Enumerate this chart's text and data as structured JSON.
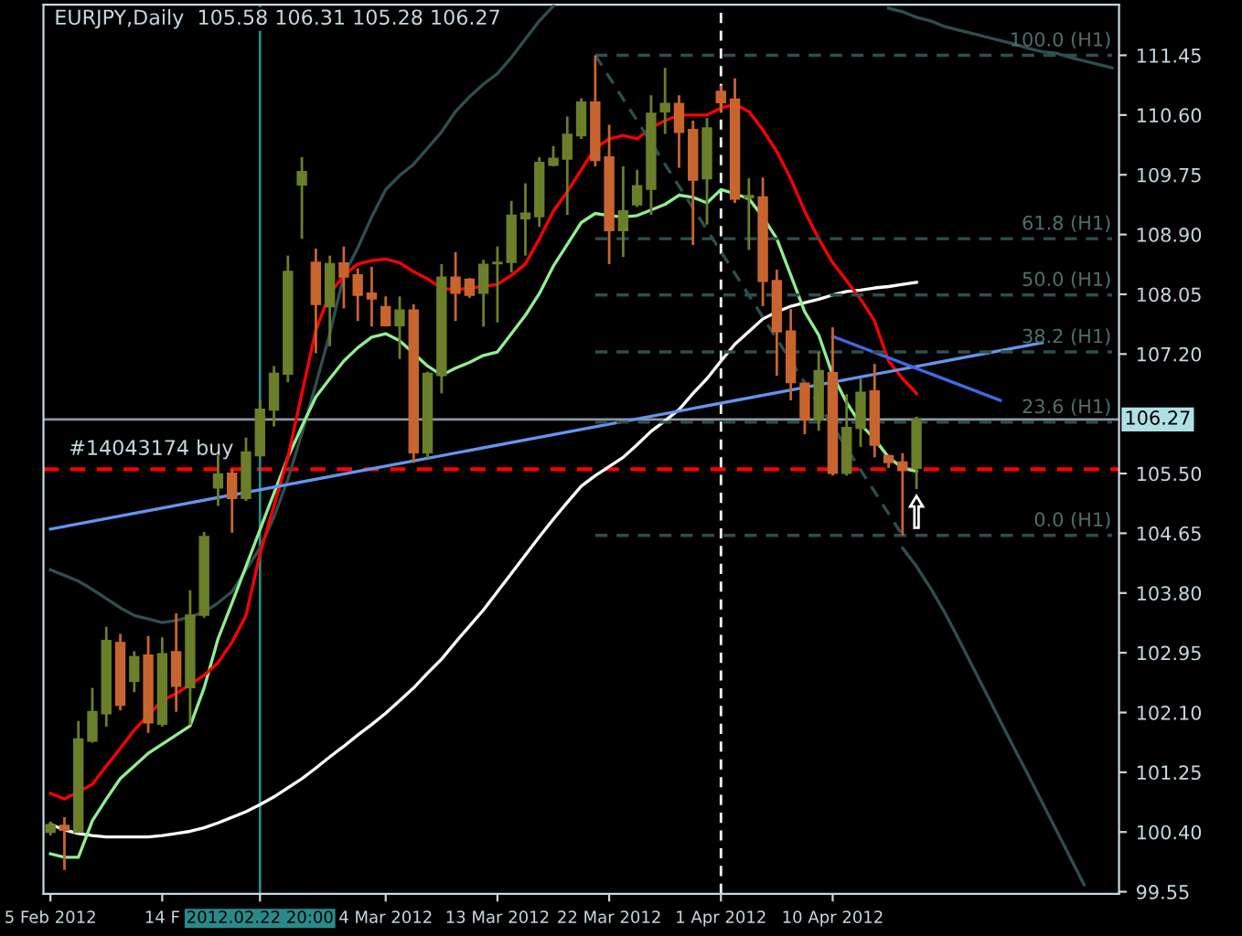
{
  "chart_data": {
    "type": "candlestick",
    "title": "EURJPY,Daily  105.58 106.31 105.28 106.27",
    "categories": [
      "5 Feb 2012",
      null,
      null,
      null,
      null,
      null,
      null,
      null,
      "14 F",
      null,
      null,
      null,
      null,
      null,
      null,
      "2012.02.22 20:00",
      null,
      null,
      null,
      null,
      null,
      null,
      null,
      null,
      "4 Mar 2012",
      null,
      null,
      null,
      null,
      null,
      null,
      null,
      "13 Mar 2012",
      null,
      null,
      null,
      null,
      null,
      null,
      null,
      "22 Mar 2012",
      null,
      null,
      null,
      null,
      null,
      null,
      null,
      "1 Apr 2012",
      null,
      null,
      null,
      null,
      null,
      null,
      null,
      "10 Apr 2012",
      null,
      null,
      null,
      null,
      null,
      null,
      null,
      null,
      null,
      null,
      null,
      null,
      null,
      null,
      null,
      null,
      null,
      null,
      null,
      null
    ],
    "ohlc": [
      [
        100.4,
        100.55,
        100.35,
        100.5
      ],
      [
        100.49,
        100.61,
        99.86,
        100.43
      ],
      [
        100.4,
        101.98,
        100.4,
        101.72
      ],
      [
        101.7,
        102.45,
        101.67,
        102.11
      ],
      [
        102.09,
        103.32,
        101.9,
        103.12
      ],
      [
        103.09,
        103.22,
        102.13,
        102.21
      ],
      [
        102.55,
        102.97,
        102.39,
        102.89
      ],
      [
        102.91,
        103.19,
        101.81,
        101.96
      ],
      [
        101.94,
        103.17,
        101.9,
        102.93
      ],
      [
        102.96,
        103.51,
        102.11,
        102.48
      ],
      [
        102.46,
        103.84,
        101.92,
        103.48
      ],
      [
        103.49,
        104.67,
        103.45,
        104.6
      ],
      [
        105.3,
        105.76,
        105.04,
        105.49
      ],
      [
        105.5,
        105.56,
        104.66,
        105.15
      ],
      [
        105.15,
        106.01,
        105.11,
        105.8
      ],
      [
        105.76,
        106.55,
        105.73,
        106.41
      ],
      [
        106.41,
        107.03,
        106.17,
        106.92
      ],
      [
        106.92,
        108.6,
        106.8,
        108.37
      ],
      [
        109.61,
        110.0,
        108.84,
        109.79
      ],
      [
        108.5,
        108.7,
        107.21,
        107.91
      ],
      [
        107.88,
        108.6,
        107.31,
        108.48
      ],
      [
        108.49,
        108.73,
        107.85,
        108.3
      ],
      [
        108.32,
        108.42,
        107.67,
        108.04
      ],
      [
        108.06,
        108.44,
        107.59,
        107.99
      ],
      [
        107.87,
        108.02,
        107.59,
        107.61
      ],
      [
        107.61,
        108.02,
        107.13,
        107.82
      ],
      [
        107.82,
        107.91,
        105.65,
        105.8
      ],
      [
        105.8,
        106.95,
        105.72,
        106.92
      ],
      [
        106.9,
        108.48,
        106.64,
        108.29
      ],
      [
        108.29,
        108.65,
        107.67,
        108.07
      ],
      [
        108.26,
        108.28,
        108.0,
        108.04
      ],
      [
        108.07,
        108.54,
        107.59,
        108.47
      ],
      [
        108.49,
        108.73,
        107.65,
        108.5
      ],
      [
        108.51,
        109.38,
        108.36,
        109.17
      ],
      [
        109.13,
        109.63,
        108.6,
        109.2
      ],
      [
        109.16,
        110.0,
        109.01,
        109.92
      ],
      [
        109.89,
        110.16,
        109.87,
        109.98
      ],
      [
        109.98,
        110.58,
        109.18,
        110.32
      ],
      [
        110.31,
        110.84,
        110.26,
        110.78
      ],
      [
        110.78,
        111.45,
        109.87,
        109.96
      ],
      [
        110.0,
        110.46,
        108.48,
        108.96
      ],
      [
        108.96,
        109.87,
        108.58,
        109.23
      ],
      [
        109.33,
        109.82,
        109.29,
        109.59
      ],
      [
        109.55,
        110.88,
        109.18,
        110.62
      ],
      [
        110.65,
        111.27,
        110.33,
        110.76
      ],
      [
        110.76,
        110.88,
        109.85,
        110.36
      ],
      [
        110.39,
        110.52,
        108.75,
        109.68
      ],
      [
        109.7,
        110.56,
        109.04,
        110.41
      ],
      [
        110.93,
        111.02,
        110.63,
        110.78
      ],
      [
        110.82,
        111.12,
        109.35,
        109.41
      ],
      [
        109.43,
        109.7,
        108.68,
        109.45
      ],
      [
        109.43,
        109.71,
        107.88,
        108.24
      ],
      [
        108.24,
        108.4,
        106.89,
        107.52
      ],
      [
        107.52,
        107.84,
        106.54,
        106.8
      ],
      [
        106.78,
        106.78,
        106.06,
        106.27
      ],
      [
        106.27,
        107.23,
        106.11,
        106.96
      ],
      [
        106.93,
        107.58,
        105.47,
        105.51
      ],
      [
        105.51,
        106.63,
        105.47,
        106.15
      ],
      [
        106.15,
        106.85,
        105.88,
        106.65
      ],
      [
        106.67,
        107.06,
        105.73,
        105.91
      ],
      [
        105.75,
        105.75,
        105.58,
        105.66
      ],
      [
        105.66,
        105.79,
        104.62,
        105.55
      ],
      [
        105.58,
        106.31,
        105.28,
        106.27
      ],
      null,
      null,
      null,
      null,
      null,
      null,
      null,
      null,
      null,
      null,
      null,
      null,
      null,
      null
    ],
    "colors": [
      "#6b7f2a",
      "#c8652f",
      "#6b7f2a",
      "#6b7f2a",
      "#6b7f2a",
      "#c8652f",
      "#6b7f2a",
      "#c8652f",
      "#6b7f2a",
      "#c8652f",
      "#6b7f2a",
      "#6b7f2a",
      "#6b7f2a",
      "#c8652f",
      "#6b7f2a",
      "#6b7f2a",
      "#6b7f2a",
      "#6b7f2a",
      "#6b7f2a",
      "#c8652f",
      "#6b7f2a",
      "#c8652f",
      "#c8652f",
      "#c8652f",
      "#c8652f",
      "#6b7f2a",
      "#c8652f",
      "#6b7f2a",
      "#6b7f2a",
      "#c8652f",
      "#c8652f",
      "#6b7f2a",
      "#6b7f2a",
      "#6b7f2a",
      "#6b7f2a",
      "#6b7f2a",
      "#6b7f2a",
      "#6b7f2a",
      "#6b7f2a",
      "#c8652f",
      "#c8652f",
      "#6b7f2a",
      "#6b7f2a",
      "#6b7f2a",
      "#6b7f2a",
      "#c8652f",
      "#c8652f",
      "#6b7f2a",
      "#c8652f",
      "#c8652f",
      "#6b7f2a",
      "#c8652f",
      "#c8652f",
      "#c8652f",
      "#c8652f",
      "#6b7f2a",
      "#c8652f",
      "#6b7f2a",
      "#6b7f2a",
      "#c8652f",
      "#c8652f",
      "#c8652f",
      "#6b7f2a",
      null,
      null,
      null,
      null,
      null,
      null,
      null,
      null,
      null,
      null,
      null,
      null,
      null,
      null
    ],
    "series": [
      {
        "type": "line",
        "color": "#ffffff",
        "values": [
          100.51,
          100.43,
          100.38,
          100.35,
          100.33,
          100.33,
          100.33,
          100.33,
          100.35,
          100.38,
          100.41,
          100.46,
          100.53,
          100.61,
          100.69,
          100.79,
          100.9,
          101.03,
          101.16,
          101.31,
          101.47,
          101.62,
          101.78,
          101.93,
          102.09,
          102.27,
          102.45,
          102.66,
          102.86,
          103.1,
          103.33,
          103.56,
          103.82,
          104.08,
          104.34,
          104.6,
          104.85,
          105.09,
          105.32,
          105.47,
          105.6,
          105.73,
          105.91,
          106.1,
          106.25,
          106.41,
          106.64,
          106.85,
          107.1,
          107.34,
          107.52,
          107.7,
          107.8,
          107.88,
          107.93,
          107.98,
          108.04,
          108.09,
          108.11,
          108.14,
          108.16,
          108.19,
          108.22,
          null,
          null,
          null,
          null,
          null,
          null,
          null,
          null,
          null,
          null,
          null,
          null,
          null,
          null
        ]
      },
      {
        "type": "line",
        "color": "#2f4f4f",
        "values": [
          104.13,
          104.05,
          103.97,
          103.85,
          103.72,
          103.59,
          103.48,
          103.43,
          103.38,
          103.41,
          103.46,
          103.53,
          103.66,
          103.82,
          104.13,
          104.44,
          104.88,
          105.42,
          106.07,
          106.77,
          107.49,
          108.32,
          108.71,
          109.15,
          109.54,
          109.74,
          109.9,
          110.13,
          110.36,
          110.65,
          110.86,
          111.04,
          111.19,
          111.42,
          111.68,
          111.94,
          112.15,
          null,
          null,
          null,
          null,
          null,
          null,
          null,
          null,
          null,
          null,
          null,
          null,
          null,
          null,
          null,
          null,
          null,
          null,
          null,
          null,
          null,
          null,
          null,
          null,
          null,
          null,
          null,
          null,
          null,
          null,
          null,
          null,
          null,
          null,
          null,
          null,
          null,
          null,
          null,
          null
        ]
      },
      {
        "type": "line",
        "color": "#2f4f4f",
        "values": [
          null,
          null,
          null,
          null,
          null,
          null,
          null,
          null,
          null,
          null,
          null,
          null,
          null,
          null,
          null,
          null,
          null,
          null,
          null,
          null,
          null,
          null,
          null,
          null,
          null,
          null,
          null,
          null,
          null,
          null,
          null,
          null,
          null,
          null,
          null,
          null,
          null,
          null,
          null,
          null,
          null,
          null,
          null,
          null,
          null,
          null,
          null,
          null,
          null,
          null,
          null,
          null,
          null,
          null,
          null,
          null,
          null,
          null,
          null,
          null,
          112.12,
          112.07,
          111.99,
          111.94,
          111.86,
          111.81,
          111.76,
          111.71,
          111.66,
          111.61,
          111.55,
          111.5,
          111.48,
          111.42,
          111.37,
          111.32,
          111.27
        ]
      },
      {
        "type": "line",
        "color": "#2f4f4f",
        "values": [
          null,
          null,
          null,
          null,
          null,
          null,
          null,
          null,
          null,
          null,
          null,
          null,
          null,
          null,
          null,
          null,
          null,
          null,
          null,
          null,
          null,
          null,
          null,
          null,
          null,
          null,
          null,
          null,
          null,
          null,
          null,
          null,
          null,
          null,
          null,
          null,
          null,
          null,
          null,
          null,
          null,
          null,
          null,
          null,
          null,
          null,
          null,
          null,
          null,
          null,
          null,
          null,
          null,
          null,
          null,
          null,
          null,
          null,
          null,
          null,
          null,
          104.44,
          104.18,
          103.87,
          103.53,
          103.15,
          102.76,
          102.37,
          101.98,
          101.59,
          101.21,
          100.82,
          100.43,
          100.04,
          99.65,
          null,
          null
        ]
      },
      {
        "type": "line",
        "color": "#90ee90",
        "values": [
          100.09,
          100.04,
          100.04,
          100.56,
          100.87,
          101.16,
          101.34,
          101.52,
          101.65,
          101.78,
          101.91,
          102.45,
          103.15,
          103.66,
          104.18,
          104.7,
          105.22,
          105.73,
          106.17,
          106.59,
          106.85,
          107.1,
          107.29,
          107.44,
          107.49,
          107.39,
          107.21,
          107.03,
          106.9,
          107.0,
          107.08,
          107.18,
          107.23,
          107.49,
          107.75,
          108.06,
          108.45,
          108.76,
          109.07,
          109.2,
          109.17,
          109.15,
          109.17,
          109.25,
          109.33,
          109.46,
          109.43,
          109.35,
          109.54,
          109.48,
          109.41,
          109.15,
          108.84,
          108.32,
          107.8,
          107.47,
          106.9,
          106.51,
          106.2,
          105.99,
          105.73,
          105.58,
          105.53,
          null,
          null,
          null,
          null,
          null,
          null,
          null,
          null,
          null,
          null,
          null,
          null,
          null,
          null
        ]
      },
      {
        "type": "line",
        "color": "#ff0000",
        "values": [
          100.95,
          100.87,
          100.97,
          101.08,
          101.34,
          101.59,
          101.85,
          102.06,
          102.27,
          102.37,
          102.5,
          102.63,
          102.81,
          103.1,
          103.48,
          104.36,
          105.04,
          105.73,
          106.64,
          107.54,
          108.06,
          108.32,
          108.48,
          108.53,
          108.55,
          108.5,
          108.37,
          108.27,
          108.14,
          108.11,
          108.14,
          108.16,
          108.19,
          108.32,
          108.48,
          108.84,
          109.23,
          109.51,
          109.82,
          110.13,
          110.26,
          110.31,
          110.26,
          110.42,
          110.52,
          110.6,
          110.6,
          110.6,
          110.7,
          110.75,
          110.65,
          110.39,
          110.08,
          109.69,
          109.23,
          108.84,
          108.5,
          108.24,
          107.98,
          107.67,
          107.1,
          106.85,
          106.64,
          null,
          null,
          null,
          null,
          null,
          null,
          null,
          null,
          null,
          null,
          null,
          null,
          null,
          null
        ]
      },
      {
        "type": "line",
        "color": "#6495ed",
        "values": [
          104.71,
          null,
          null,
          null,
          null,
          null,
          null,
          null,
          null,
          null,
          null,
          null,
          null,
          null,
          null,
          null,
          null,
          null,
          null,
          null,
          null,
          null,
          null,
          null,
          null,
          null,
          null,
          null,
          null,
          null,
          null,
          null,
          null,
          null,
          null,
          null,
          null,
          null,
          null,
          null,
          null,
          null,
          null,
          null,
          null,
          null,
          null,
          null,
          null,
          null,
          null,
          null,
          null,
          null,
          null,
          null,
          null,
          null,
          null,
          null,
          null,
          null,
          null,
          null,
          null,
          null,
          null,
          null,
          null,
          null,
          null,
          107.36,
          null,
          null,
          null,
          null,
          null
        ]
      },
      {
        "type": "line",
        "color": "#4169e1",
        "values": [
          null,
          null,
          null,
          null,
          null,
          null,
          null,
          null,
          null,
          null,
          null,
          null,
          null,
          null,
          null,
          null,
          null,
          null,
          null,
          null,
          null,
          null,
          null,
          null,
          null,
          null,
          null,
          null,
          null,
          null,
          null,
          null,
          null,
          null,
          null,
          null,
          null,
          null,
          null,
          null,
          null,
          null,
          null,
          null,
          null,
          null,
          null,
          null,
          null,
          null,
          null,
          null,
          null,
          null,
          null,
          null,
          107.45,
          null,
          null,
          null,
          null,
          null,
          null,
          null,
          null,
          null,
          null,
          null,
          106.54,
          null,
          null,
          null,
          null,
          null,
          null,
          null,
          null
        ]
      },
      {
        "type": "line",
        "color": "#2f4f4f",
        "line_style": "dashed",
        "values": [
          null,
          null,
          null,
          null,
          null,
          null,
          null,
          null,
          null,
          null,
          null,
          null,
          null,
          null,
          null,
          null,
          null,
          null,
          null,
          null,
          null,
          null,
          null,
          null,
          null,
          null,
          null,
          null,
          null,
          null,
          null,
          null,
          null,
          null,
          null,
          null,
          null,
          null,
          null,
          111.45,
          null,
          null,
          null,
          null,
          null,
          null,
          null,
          null,
          null,
          null,
          null,
          null,
          null,
          null,
          null,
          null,
          null,
          null,
          null,
          null,
          null,
          104.62,
          null,
          null,
          null,
          null,
          null,
          null,
          null,
          null,
          null,
          null,
          null,
          null,
          null,
          null,
          null
        ]
      },
      {
        "type": "line",
        "color": "#2f4f4f",
        "line_style": "dashed",
        "values": [
          null,
          null,
          null,
          null,
          null,
          null,
          null,
          null,
          null,
          null,
          null,
          null,
          null,
          null,
          null,
          null,
          null,
          null,
          null,
          null,
          null,
          null,
          null,
          null,
          null,
          null,
          null,
          null,
          null,
          null,
          null,
          null,
          null,
          null,
          null,
          null,
          null,
          null,
          null,
          111.45,
          null,
          null,
          null,
          null,
          null,
          null,
          null,
          null,
          null,
          null,
          null,
          null,
          null,
          null,
          null,
          null,
          null,
          null,
          null,
          null,
          null,
          null,
          null,
          null,
          null,
          null,
          null,
          null,
          null,
          null,
          null,
          null,
          null,
          null,
          null,
          null,
          111.45
        ]
      },
      {
        "type": "line",
        "color": "#2f4f4f",
        "line_style": "dashed",
        "values": [
          null,
          null,
          null,
          null,
          null,
          null,
          null,
          null,
          null,
          null,
          null,
          null,
          null,
          null,
          null,
          null,
          null,
          null,
          null,
          null,
          null,
          null,
          null,
          null,
          null,
          null,
          null,
          null,
          null,
          null,
          null,
          null,
          null,
          null,
          null,
          null,
          null,
          null,
          null,
          108.84,
          null,
          null,
          null,
          null,
          null,
          null,
          null,
          null,
          null,
          null,
          null,
          null,
          null,
          null,
          null,
          null,
          null,
          null,
          null,
          null,
          null,
          null,
          null,
          null,
          null,
          null,
          null,
          null,
          null,
          null,
          null,
          null,
          null,
          null,
          null,
          null,
          108.84
        ]
      },
      {
        "type": "line",
        "color": "#2f4f4f",
        "line_style": "dashed",
        "values": [
          null,
          null,
          null,
          null,
          null,
          null,
          null,
          null,
          null,
          null,
          null,
          null,
          null,
          null,
          null,
          null,
          null,
          null,
          null,
          null,
          null,
          null,
          null,
          null,
          null,
          null,
          null,
          null,
          null,
          null,
          null,
          null,
          null,
          null,
          null,
          null,
          null,
          null,
          null,
          108.04,
          null,
          null,
          null,
          null,
          null,
          null,
          null,
          null,
          null,
          null,
          null,
          null,
          null,
          null,
          null,
          null,
          null,
          null,
          null,
          null,
          null,
          null,
          null,
          null,
          null,
          null,
          null,
          null,
          null,
          null,
          null,
          null,
          null,
          null,
          null,
          null,
          108.04
        ]
      },
      {
        "type": "line",
        "color": "#2f4f4f",
        "line_style": "dashed",
        "values": [
          null,
          null,
          null,
          null,
          null,
          null,
          null,
          null,
          null,
          null,
          null,
          null,
          null,
          null,
          null,
          null,
          null,
          null,
          null,
          null,
          null,
          null,
          null,
          null,
          null,
          null,
          null,
          null,
          null,
          null,
          null,
          null,
          null,
          null,
          null,
          null,
          null,
          null,
          null,
          107.23,
          null,
          null,
          null,
          null,
          null,
          null,
          null,
          null,
          null,
          null,
          null,
          null,
          null,
          null,
          null,
          null,
          null,
          null,
          null,
          null,
          null,
          null,
          null,
          null,
          null,
          null,
          null,
          null,
          null,
          null,
          null,
          null,
          null,
          null,
          null,
          null,
          107.23
        ]
      },
      {
        "type": "line",
        "color": "#2f4f4f",
        "line_style": "dashed",
        "values": [
          null,
          null,
          null,
          null,
          null,
          null,
          null,
          null,
          null,
          null,
          null,
          null,
          null,
          null,
          null,
          null,
          null,
          null,
          null,
          null,
          null,
          null,
          null,
          null,
          null,
          null,
          null,
          null,
          null,
          null,
          null,
          null,
          null,
          null,
          null,
          null,
          null,
          null,
          null,
          106.23,
          null,
          null,
          null,
          null,
          null,
          null,
          null,
          null,
          null,
          null,
          null,
          null,
          null,
          null,
          null,
          null,
          null,
          null,
          null,
          null,
          null,
          null,
          null,
          null,
          null,
          null,
          null,
          null,
          null,
          null,
          null,
          null,
          null,
          null,
          null,
          null,
          106.23
        ]
      },
      {
        "type": "line",
        "color": "#2f4f4f",
        "line_style": "dashed",
        "values": [
          null,
          null,
          null,
          null,
          null,
          null,
          null,
          null,
          null,
          null,
          null,
          null,
          null,
          null,
          null,
          null,
          null,
          null,
          null,
          null,
          null,
          null,
          null,
          null,
          null,
          null,
          null,
          null,
          null,
          null,
          null,
          null,
          null,
          null,
          null,
          null,
          null,
          null,
          null,
          104.62,
          null,
          null,
          null,
          null,
          null,
          null,
          null,
          null,
          null,
          null,
          null,
          null,
          null,
          null,
          null,
          null,
          null,
          null,
          null,
          null,
          null,
          null,
          null,
          null,
          null,
          null,
          null,
          null,
          null,
          null,
          null,
          null,
          null,
          null,
          null,
          null,
          104.62
        ]
      }
    ],
    "ylim": [
      99.52,
      112.17
    ],
    "yticks": [
      {
        "value": 99.55,
        "label": "99.55"
      },
      {
        "value": 100.4,
        "label": "100.40"
      },
      {
        "value": 101.25,
        "label": "101.25"
      },
      {
        "value": 102.1,
        "label": "102.10"
      },
      {
        "value": 102.95,
        "label": "102.95"
      },
      {
        "value": 103.8,
        "label": "103.80"
      },
      {
        "value": 104.65,
        "label": "104.65"
      },
      {
        "value": 105.5,
        "label": "105.50"
      },
      {
        "value": 107.2,
        "label": "107.20"
      },
      {
        "value": 108.05,
        "label": "108.05"
      },
      {
        "value": 108.9,
        "label": "108.90"
      },
      {
        "value": 109.75,
        "label": "109.75"
      },
      {
        "value": 110.6,
        "label": "110.60"
      },
      {
        "value": 111.45,
        "label": "111.45"
      }
    ],
    "ref_lines": [
      {
        "axis": "y",
        "value": 105.56,
        "color": "#ff0000",
        "line_style": "dashed",
        "label": "#14043174 buy"
      },
      {
        "axis": "y",
        "value": 106.27,
        "color": "#8c98a0",
        "label": "106.27"
      },
      {
        "axis": "x",
        "value": "2012.02.22 20:00",
        "color": "#2a8a8a"
      },
      {
        "axis": "x",
        "value": "1 Apr 2012",
        "color": "#ffffff",
        "line_style": "dashed"
      }
    ],
    "annotations": [
      {
        "text": "100.0 (H1)",
        "y": 111.45
      },
      {
        "text": "61.8 (H1)",
        "y": 108.84
      },
      {
        "text": "50.0 (H1)",
        "y": 108.04
      },
      {
        "text": "38.2 (H1)",
        "y": 107.23
      },
      {
        "text": "23.6 (H1)",
        "y": 106.23
      },
      {
        "text": "0.0 (H1)",
        "y": 104.62
      }
    ]
  }
}
